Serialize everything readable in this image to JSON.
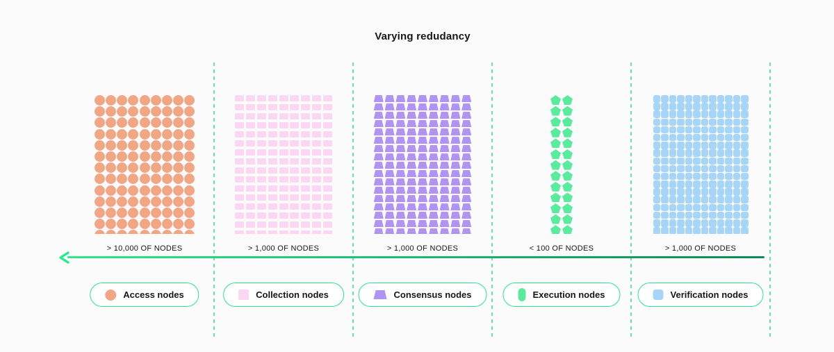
{
  "title": "Varying redudancy",
  "colors": {
    "background": "#fbfbfb",
    "text": "#161616",
    "separator": "#62e3a8",
    "arrow_bright": "#2be98b",
    "arrow_dark": "#0b8a58",
    "pill_border": "#2ee08a",
    "pill_background": "#ffffff"
  },
  "sections": [
    {
      "id": "access",
      "legend_label": "Access nodes",
      "count_label": "> 10,000 OF NODES",
      "shape": "circle",
      "color": "#f1a686",
      "cols": 9,
      "rows": 13
    },
    {
      "id": "collection",
      "legend_label": "Collection nodes",
      "count_label": "> 1,000 OF NODES",
      "shape": "square",
      "color": "#fbd7f2",
      "cols": 9,
      "rows": 16
    },
    {
      "id": "consensus",
      "legend_label": "Consensus nodes",
      "count_label": "> 1,000 OF NODES",
      "shape": "trapezoid",
      "color": "#b093f2",
      "cols": 9,
      "rows": 17
    },
    {
      "id": "execution",
      "legend_label": "Execution nodes",
      "count_label": "< 100 OF NODES",
      "shape": "pentagon",
      "color": "#5cea9e",
      "cols": 2,
      "rows": 13
    },
    {
      "id": "verification",
      "legend_label": "Verification nodes",
      "count_label": "> 1,000 OF NODES",
      "shape": "rounded-square",
      "color": "#a6d5f8",
      "cols": 12,
      "rows": 18
    }
  ]
}
